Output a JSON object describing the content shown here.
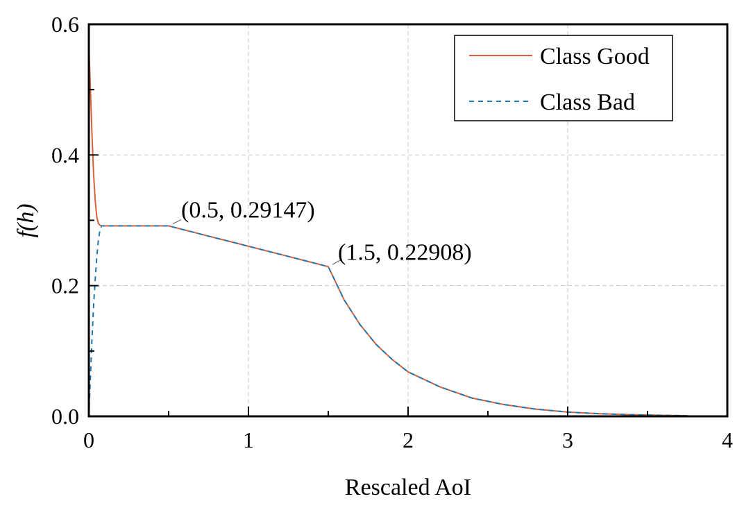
{
  "chart_data": {
    "type": "line",
    "title": "",
    "xlabel": "Rescaled AoI",
    "ylabel": "f(h)",
    "xlim": [
      0,
      4
    ],
    "ylim": [
      0,
      0.6
    ],
    "x_ticks": [
      "0",
      "1",
      "2",
      "3",
      "4"
    ],
    "y_ticks": [
      "0.0",
      "0.2",
      "0.4",
      "0.6"
    ],
    "grid": true,
    "legend_position": "upper right",
    "series": [
      {
        "name": "Class Good",
        "color": "#d9603b",
        "style": "solid",
        "x": [
          0,
          0.01,
          0.02,
          0.03,
          0.04,
          0.05,
          0.06,
          0.07,
          0.08,
          0.1,
          0.2,
          0.3,
          0.4,
          0.5,
          0.75,
          1.0,
          1.25,
          1.5,
          1.6,
          1.7,
          1.8,
          1.9,
          2.0,
          2.2,
          2.4,
          2.6,
          2.8,
          3.0,
          3.2,
          3.4,
          3.6,
          3.75
        ],
        "values": [
          0.57,
          0.5,
          0.43,
          0.37,
          0.33,
          0.305,
          0.295,
          0.2925,
          0.29147,
          0.29147,
          0.29147,
          0.29147,
          0.29147,
          0.29147,
          0.2758,
          0.2603,
          0.2447,
          0.22908,
          0.178,
          0.14,
          0.11,
          0.087,
          0.068,
          0.045,
          0.028,
          0.018,
          0.011,
          0.0065,
          0.004,
          0.0025,
          0.0015,
          0.001
        ]
      },
      {
        "name": "Class Bad",
        "color": "#1f77b4",
        "style": "dashed",
        "x": [
          0,
          0.01,
          0.02,
          0.03,
          0.04,
          0.05,
          0.06,
          0.07,
          0.08,
          0.1,
          0.2,
          0.3,
          0.4,
          0.5,
          0.75,
          1.0,
          1.25,
          1.5,
          1.6,
          1.7,
          1.8,
          1.9,
          2.0,
          2.2,
          2.4,
          2.6,
          2.8,
          3.0,
          3.2,
          3.4,
          3.6,
          3.75
        ],
        "values": [
          0.0,
          0.06,
          0.12,
          0.17,
          0.21,
          0.245,
          0.27,
          0.285,
          0.29147,
          0.29147,
          0.29147,
          0.29147,
          0.29147,
          0.29147,
          0.2758,
          0.2603,
          0.2447,
          0.22908,
          0.178,
          0.14,
          0.11,
          0.087,
          0.068,
          0.045,
          0.028,
          0.018,
          0.011,
          0.0065,
          0.004,
          0.0025,
          0.0015,
          0.001
        ]
      }
    ],
    "annotations": [
      {
        "text": "(0.5, 0.29147)",
        "x": 0.5,
        "y": 0.29147
      },
      {
        "text": "(1.5, 0.22908)",
        "x": 1.5,
        "y": 0.22908
      }
    ]
  }
}
